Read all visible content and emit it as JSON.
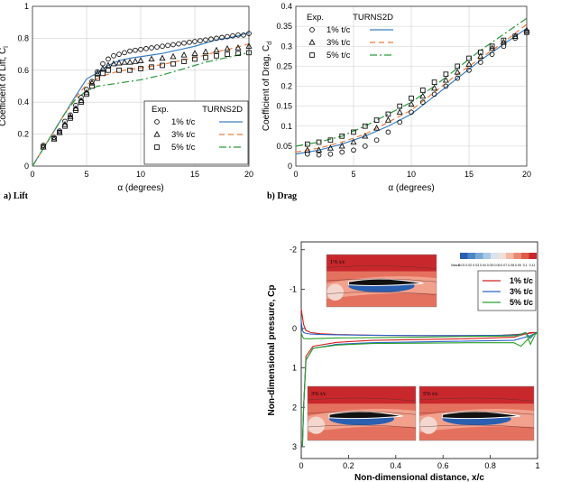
{
  "chart_data": [
    {
      "type": "line",
      "panel_label": "a) Lift",
      "xlabel": "α (degrees)",
      "ylabel": "Coefficient of Lift, C",
      "ylabel_sub": "l",
      "xlim": [
        0,
        20
      ],
      "ylim": [
        0,
        1
      ],
      "xticks": [
        "0",
        "5",
        "10",
        "15",
        "20"
      ],
      "yticks": [
        "0",
        "0.2",
        "0.4",
        "0.6",
        "0.8",
        "1"
      ],
      "legend": {
        "col1": "Exp.",
        "col2": "TURNS2D",
        "labels": [
          "1%  t/c",
          "3%  t/c",
          "5%  t/c"
        ],
        "position": "lower-right"
      },
      "series": [
        {
          "name": "1%  t/c",
          "kind": "model",
          "color": "#3a7fc2",
          "dash": "",
          "x": [
            0,
            1,
            2,
            3,
            4,
            5,
            6,
            7,
            8,
            9,
            10,
            11,
            12,
            13,
            14,
            15,
            16,
            17,
            18,
            19,
            20
          ],
          "y": [
            0,
            0.11,
            0.22,
            0.33,
            0.44,
            0.545,
            0.585,
            0.63,
            0.66,
            0.675,
            0.685,
            0.695,
            0.705,
            0.72,
            0.735,
            0.75,
            0.77,
            0.79,
            0.8,
            0.815,
            0.835
          ]
        },
        {
          "name": "3%  t/c",
          "kind": "model",
          "color": "#ee7d3b",
          "dash": "6,4",
          "x": [
            0,
            1,
            2,
            3,
            4,
            5,
            6,
            7,
            8,
            9,
            10,
            11,
            12,
            13,
            14,
            15,
            16,
            17,
            18,
            19,
            20
          ],
          "y": [
            0,
            0.11,
            0.22,
            0.33,
            0.43,
            0.51,
            0.55,
            0.575,
            0.595,
            0.605,
            0.615,
            0.625,
            0.635,
            0.65,
            0.665,
            0.68,
            0.695,
            0.715,
            0.73,
            0.745,
            0.765
          ]
        },
        {
          "name": "5%  t/c",
          "kind": "model",
          "color": "#2a9a3a",
          "dash": "8,3,2,3",
          "x": [
            0,
            1,
            2,
            3,
            4,
            5,
            6,
            7,
            8,
            9,
            10,
            11,
            12,
            13,
            14,
            15,
            16,
            17,
            18,
            19,
            20
          ],
          "y": [
            0,
            0.11,
            0.22,
            0.33,
            0.42,
            0.47,
            0.5,
            0.51,
            0.52,
            0.53,
            0.54,
            0.555,
            0.57,
            0.59,
            0.61,
            0.63,
            0.65,
            0.665,
            0.68,
            0.695,
            0.71
          ]
        },
        {
          "name": "1%  t/c",
          "kind": "exp",
          "marker": "circle",
          "x": [
            1,
            2,
            2.5,
            3,
            3.5,
            4,
            4.5,
            5,
            5.5,
            6,
            6.5,
            7,
            7.5,
            8,
            8.5,
            9,
            9.5,
            10,
            10.5,
            11,
            11.5,
            12,
            12.5,
            13,
            13.5,
            14,
            14.5,
            15,
            15.5,
            16,
            16.5,
            17,
            17.5,
            18,
            18.5,
            19,
            19.5,
            20
          ],
          "y": [
            0.13,
            0.18,
            0.22,
            0.28,
            0.32,
            0.38,
            0.43,
            0.48,
            0.53,
            0.59,
            0.64,
            0.67,
            0.69,
            0.7,
            0.71,
            0.72,
            0.725,
            0.73,
            0.735,
            0.74,
            0.745,
            0.75,
            0.755,
            0.76,
            0.765,
            0.77,
            0.775,
            0.78,
            0.785,
            0.79,
            0.795,
            0.8,
            0.805,
            0.81,
            0.815,
            0.82,
            0.82,
            0.83
          ]
        },
        {
          "name": "3%  t/c",
          "kind": "exp",
          "marker": "triangle",
          "x": [
            1,
            2,
            2.5,
            3,
            3.5,
            4,
            4.5,
            5,
            5.5,
            6,
            6.5,
            7,
            7.5,
            8,
            8.5,
            9,
            9.5,
            10,
            11,
            12,
            13,
            14,
            15,
            16,
            17,
            18,
            19,
            20
          ],
          "y": [
            0.12,
            0.17,
            0.21,
            0.26,
            0.31,
            0.36,
            0.41,
            0.46,
            0.52,
            0.58,
            0.61,
            0.63,
            0.64,
            0.645,
            0.65,
            0.65,
            0.655,
            0.66,
            0.67,
            0.675,
            0.685,
            0.695,
            0.705,
            0.715,
            0.725,
            0.735,
            0.74,
            0.75
          ]
        },
        {
          "name": "5%  t/c",
          "kind": "exp",
          "marker": "square",
          "x": [
            1,
            2,
            2.5,
            3,
            3.5,
            4,
            4.5,
            5,
            5.5,
            6,
            6.5,
            7,
            8,
            9,
            10,
            11,
            12,
            13,
            14,
            15,
            16,
            17,
            18,
            19,
            20
          ],
          "y": [
            0.12,
            0.17,
            0.21,
            0.25,
            0.3,
            0.35,
            0.4,
            0.45,
            0.5,
            0.55,
            0.58,
            0.6,
            0.6,
            0.6,
            0.61,
            0.62,
            0.63,
            0.64,
            0.655,
            0.67,
            0.68,
            0.69,
            0.7,
            0.705,
            0.71
          ]
        }
      ]
    },
    {
      "type": "line",
      "panel_label": "b) Drag",
      "xlabel": "α (degrees)",
      "ylabel": "Coefficient of Drag, C",
      "ylabel_sub": "d",
      "xlim": [
        0,
        20
      ],
      "ylim": [
        0,
        0.4
      ],
      "xticks": [
        "0",
        "5",
        "10",
        "15",
        "20"
      ],
      "yticks": [
        "0",
        "0.05",
        "0.1",
        "0.15",
        "0.2",
        "0.25",
        "0.3",
        "0.35",
        "0.4"
      ],
      "legend": {
        "col1": "Exp.",
        "col2": "TURNS2D",
        "labels": [
          "1%  t/c",
          "3%  t/c",
          "5%  t/c"
        ],
        "position": "upper-left"
      },
      "series": [
        {
          "name": "1%  t/c",
          "kind": "model",
          "color": "#3a7fc2",
          "dash": "",
          "x": [
            0,
            2,
            4,
            6,
            8,
            10,
            12,
            14,
            16,
            18,
            20
          ],
          "y": [
            0.03,
            0.04,
            0.055,
            0.075,
            0.1,
            0.13,
            0.175,
            0.22,
            0.265,
            0.305,
            0.345
          ]
        },
        {
          "name": "3%  t/c",
          "kind": "model",
          "color": "#ee7d3b",
          "dash": "6,4",
          "x": [
            0,
            2,
            4,
            6,
            8,
            10,
            12,
            14,
            16,
            18,
            20
          ],
          "y": [
            0.035,
            0.045,
            0.06,
            0.08,
            0.11,
            0.14,
            0.185,
            0.23,
            0.27,
            0.31,
            0.355
          ]
        },
        {
          "name": "5%  t/c",
          "kind": "model",
          "color": "#2a9a3a",
          "dash": "8,3,2,3",
          "x": [
            0,
            2,
            4,
            6,
            8,
            10,
            12,
            14,
            16,
            18,
            20
          ],
          "y": [
            0.05,
            0.06,
            0.075,
            0.1,
            0.13,
            0.16,
            0.2,
            0.245,
            0.29,
            0.33,
            0.37
          ]
        },
        {
          "name": "1%  t/c",
          "kind": "exp",
          "marker": "circle",
          "x": [
            1,
            2,
            3,
            4,
            5,
            6,
            7,
            8,
            9,
            10,
            11,
            12,
            13,
            14,
            15,
            16,
            17,
            18,
            19,
            20
          ],
          "y": [
            0.03,
            0.028,
            0.03,
            0.035,
            0.04,
            0.05,
            0.065,
            0.085,
            0.11,
            0.135,
            0.16,
            0.18,
            0.2,
            0.22,
            0.24,
            0.26,
            0.28,
            0.3,
            0.32,
            0.335
          ]
        },
        {
          "name": "3%  t/c",
          "kind": "exp",
          "marker": "triangle",
          "x": [
            1,
            2,
            3,
            4,
            5,
            6,
            7,
            8,
            9,
            10,
            11,
            12,
            13,
            14,
            15,
            16,
            17,
            18,
            19,
            20
          ],
          "y": [
            0.04,
            0.04,
            0.045,
            0.05,
            0.06,
            0.075,
            0.095,
            0.115,
            0.135,
            0.155,
            0.175,
            0.195,
            0.215,
            0.235,
            0.255,
            0.275,
            0.295,
            0.31,
            0.325,
            0.34
          ]
        },
        {
          "name": "5%  t/c",
          "kind": "exp",
          "marker": "square",
          "x": [
            1,
            2,
            3,
            4,
            5,
            6,
            7,
            8,
            9,
            10,
            11,
            12,
            13,
            14,
            15,
            16,
            17,
            18,
            19,
            20
          ],
          "y": [
            0.055,
            0.06,
            0.065,
            0.075,
            0.085,
            0.1,
            0.115,
            0.13,
            0.15,
            0.17,
            0.19,
            0.21,
            0.23,
            0.25,
            0.27,
            0.285,
            0.3,
            0.315,
            0.325,
            0.335
          ]
        }
      ]
    },
    {
      "type": "line",
      "xlabel": "Non-dimensional distance, x/c",
      "ylabel": "Non-dimensional pressure, Cp",
      "xlim": [
        0,
        1
      ],
      "ylim": [
        -2.2,
        3.3
      ],
      "y_inverted": true,
      "xticks": [
        "0",
        "0.2",
        "0.4",
        "0.6",
        "0.8",
        "1"
      ],
      "yticks": [
        "-2",
        "-1",
        "0",
        "1",
        "2",
        "3"
      ],
      "legend": {
        "labels": [
          "1% t/c",
          "3% t/c",
          "5% t/c"
        ],
        "position": "upper-right"
      },
      "inset_labels": [
        "1% t/c",
        "3% t/c",
        "5% t/c"
      ],
      "colorbar_title": "Mach",
      "colorbar_ticks": [
        "0.01",
        "0.02",
        "0.03",
        "0.04",
        "0.05",
        "0.06",
        "0.07",
        "0.08",
        "0.09",
        "0.1",
        "0.11"
      ],
      "series": [
        {
          "name": "1% t/c",
          "color": "#d42020",
          "x": [
            0,
            0.005,
            0.01,
            0.02,
            0.04,
            0.08,
            0.15,
            0.3,
            0.5,
            0.7,
            0.85,
            0.94,
            0.97,
            0.99,
            1.0,
            0.99,
            0.97,
            0.9,
            0.7,
            0.5,
            0.3,
            0.15,
            0.05,
            0.02,
            0.01,
            0.005
          ],
          "y": [
            -0.5,
            -0.3,
            -0.1,
            0.05,
            0.1,
            0.13,
            0.15,
            0.17,
            0.18,
            0.18,
            0.17,
            0.14,
            0.12,
            0.1,
            0.1,
            0.1,
            0.1,
            0.22,
            0.26,
            0.28,
            0.3,
            0.35,
            0.45,
            0.7,
            2.0,
            3.0
          ]
        },
        {
          "name": "3% t/c",
          "color": "#2d63c8",
          "x": [
            0,
            0.005,
            0.01,
            0.02,
            0.04,
            0.08,
            0.15,
            0.3,
            0.5,
            0.7,
            0.85,
            0.92,
            0.95,
            0.97,
            0.99,
            1.0,
            0.99,
            0.97,
            0.9,
            0.7,
            0.5,
            0.3,
            0.15,
            0.05,
            0.02,
            0.01,
            0.005
          ],
          "y": [
            -0.2,
            0.05,
            0.1,
            0.12,
            0.14,
            0.15,
            0.16,
            0.17,
            0.18,
            0.18,
            0.17,
            0.16,
            0.1,
            0.25,
            0.1,
            0.1,
            0.12,
            0.18,
            0.3,
            0.32,
            0.34,
            0.36,
            0.4,
            0.5,
            0.8,
            2.0,
            3.0
          ]
        },
        {
          "name": "5% t/c",
          "color": "#2aa02a",
          "x": [
            0,
            0.005,
            0.01,
            0.02,
            0.04,
            0.08,
            0.15,
            0.3,
            0.5,
            0.7,
            0.85,
            0.92,
            0.95,
            0.97,
            0.99,
            1.0,
            0.99,
            0.97,
            0.93,
            0.9,
            0.7,
            0.5,
            0.3,
            0.15,
            0.05,
            0.02,
            0.01,
            0.005
          ],
          "y": [
            0.1,
            0.2,
            0.25,
            0.26,
            0.26,
            0.25,
            0.24,
            0.23,
            0.22,
            0.2,
            0.19,
            0.18,
            0.1,
            0.4,
            0.15,
            0.1,
            0.13,
            0.2,
            0.45,
            0.36,
            0.36,
            0.37,
            0.38,
            0.42,
            0.5,
            0.8,
            2.0,
            3.0
          ]
        }
      ]
    }
  ]
}
